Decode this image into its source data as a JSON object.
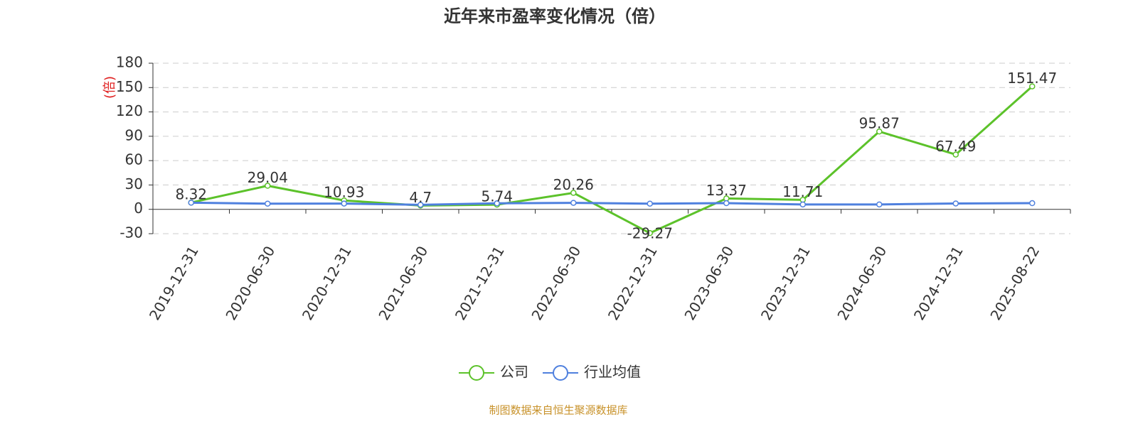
{
  "chart_data": {
    "type": "line",
    "title": "近年来市盈率变化情况（倍）",
    "y_label": "(倍)",
    "categories": [
      "2019-12-31",
      "2020-06-30",
      "2020-12-31",
      "2021-06-30",
      "2021-12-31",
      "2022-06-30",
      "2022-12-31",
      "2023-06-30",
      "2023-12-31",
      "2024-06-30",
      "2024-12-31",
      "2025-08-22"
    ],
    "series": [
      {
        "name": "公司",
        "color": "#5cc22a",
        "values": [
          8.32,
          29.04,
          10.93,
          4.7,
          5.74,
          20.26,
          -29.27,
          13.37,
          11.71,
          95.87,
          67.49,
          151.47
        ],
        "show_labels": true
      },
      {
        "name": "行业均值",
        "color": "#4f80de",
        "values": [
          8.2,
          7.0,
          7.1,
          5.6,
          7.4,
          8.0,
          7.0,
          7.6,
          6.0,
          6.0,
          7.2,
          7.6
        ],
        "show_labels": false
      }
    ],
    "ylim": [
      -30,
      180
    ],
    "yticks": [
      -30,
      0,
      30,
      60,
      90,
      120,
      150,
      180
    ],
    "grid": true,
    "source": "制图数据来自恒生聚源数据库"
  }
}
